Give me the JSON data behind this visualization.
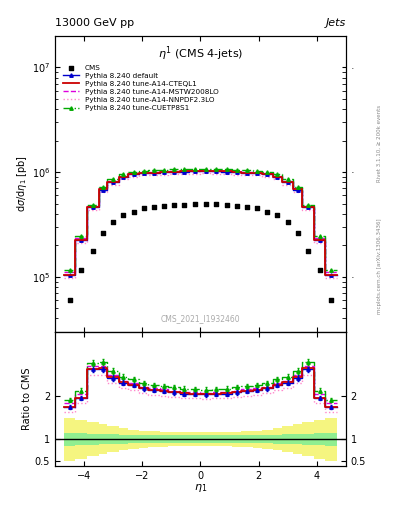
{
  "title_main": "13000 GeV pp",
  "title_right": "Jets",
  "plot_title": "$\\eta^1$ (CMS 4-jets)",
  "xlabel": "$\\eta_1$",
  "ylabel_main": "d$\\sigma$/d$\\eta_1$ [pb]",
  "ylabel_ratio": "Ratio to CMS",
  "watermark": "CMS_2021_I1932460",
  "rivet_text": "Rivet 3.1.10, ≥ 200k events",
  "mcplots_text": "mcplots.cern.ch [arXiv:1306.3436]",
  "eta_bins": [
    -4.7,
    -4.3,
    -3.9,
    -3.5,
    -3.2,
    -2.8,
    -2.5,
    -2.1,
    -1.8,
    -1.4,
    -1.1,
    -0.7,
    -0.4,
    0.0,
    0.4,
    0.7,
    1.1,
    1.4,
    1.8,
    2.1,
    2.5,
    2.8,
    3.2,
    3.5,
    3.9,
    4.3,
    4.7
  ],
  "cms_data_y": [
    60000.0,
    115000.0,
    175000.0,
    260000.0,
    330000.0,
    390000.0,
    420000.0,
    450000.0,
    460000.0,
    470000.0,
    480000.0,
    490000.0,
    495000.0,
    500000.0,
    495000.0,
    480000.0,
    470000.0,
    460000.0,
    450000.0,
    420000.0,
    390000.0,
    330000.0,
    260000.0,
    175000.0,
    115000.0,
    60000.0
  ],
  "pythia_default_y": [
    105000.0,
    225000.0,
    460000.0,
    680000.0,
    800000.0,
    900000.0,
    950000.0,
    980000.0,
    985000.0,
    995000.0,
    1005000.0,
    1010000.0,
    1015000.0,
    1020000.0,
    1015000.0,
    1010000.0,
    995000.0,
    985000.0,
    980000.0,
    950000.0,
    900000.0,
    800000.0,
    680000.0,
    460000.0,
    225000.0,
    105000.0
  ],
  "pythia_cteq_y": [
    105000.0,
    225000.0,
    460000.0,
    685000.0,
    805000.0,
    905000.0,
    955000.0,
    985000.0,
    990000.0,
    1000000.0,
    1010000.0,
    1015000.0,
    1020000.0,
    1025000.0,
    1020000.0,
    1015000.0,
    1000000.0,
    990000.0,
    985000.0,
    955000.0,
    905000.0,
    805000.0,
    685000.0,
    460000.0,
    225000.0,
    105000.0
  ],
  "pythia_mstw_y": [
    110000.0,
    235000.0,
    470000.0,
    700000.0,
    820000.0,
    920000.0,
    970000.0,
    1000000.0,
    1005000.0,
    1015000.0,
    1025000.0,
    1030000.0,
    1035000.0,
    1040000.0,
    1035000.0,
    1030000.0,
    1015000.0,
    1005000.0,
    1000000.0,
    970000.0,
    920000.0,
    820000.0,
    700000.0,
    470000.0,
    235000.0,
    110000.0
  ],
  "pythia_nnpdf_y": [
    98000.0,
    210000.0,
    435000.0,
    650000.0,
    760000.0,
    850000.0,
    900000.0,
    930000.0,
    935000.0,
    945000.0,
    955000.0,
    960000.0,
    965000.0,
    970000.0,
    965000.0,
    960000.0,
    945000.0,
    935000.0,
    930000.0,
    900000.0,
    850000.0,
    760000.0,
    650000.0,
    435000.0,
    210000.0,
    98000.0
  ],
  "pythia_cuetp_y": [
    115000.0,
    245000.0,
    485000.0,
    725000.0,
    850000.0,
    955000.0,
    1005000.0,
    1035000.0,
    1040000.0,
    1050000.0,
    1060000.0,
    1065000.0,
    1070000.0,
    1075000.0,
    1070000.0,
    1065000.0,
    1050000.0,
    1040000.0,
    1035000.0,
    1005000.0,
    955000.0,
    850000.0,
    725000.0,
    485000.0,
    245000.0,
    115000.0
  ],
  "color_default": "#0000cc",
  "color_cteq": "#cc0000",
  "color_mstw": "#dd00dd",
  "color_nnpdf": "#ff88cc",
  "color_cuetp": "#00aa00",
  "color_cms": "#000000",
  "ylim_main": [
    30000.0,
    20000000.0
  ],
  "ylim_ratio": [
    0.38,
    3.5
  ],
  "xlim": [
    -5.0,
    5.0
  ],
  "ratio_default": [
    1.75,
    1.96,
    2.63,
    2.62,
    2.42,
    2.31,
    2.26,
    2.18,
    2.14,
    2.12,
    2.09,
    2.06,
    2.05,
    2.04,
    2.05,
    2.06,
    2.09,
    2.12,
    2.14,
    2.18,
    2.26,
    2.31,
    2.42,
    2.62,
    1.96,
    1.75
  ],
  "ratio_cteq": [
    1.75,
    1.96,
    2.63,
    2.65,
    2.44,
    2.32,
    2.27,
    2.19,
    2.15,
    2.13,
    2.1,
    2.07,
    2.06,
    2.05,
    2.06,
    2.07,
    2.1,
    2.13,
    2.15,
    2.19,
    2.27,
    2.32,
    2.44,
    2.65,
    1.96,
    1.75
  ],
  "ratio_mstw": [
    1.83,
    2.04,
    2.69,
    2.69,
    2.48,
    2.36,
    2.31,
    2.22,
    2.18,
    2.16,
    2.13,
    2.1,
    2.09,
    2.08,
    2.09,
    2.1,
    2.13,
    2.16,
    2.18,
    2.22,
    2.31,
    2.36,
    2.48,
    2.69,
    2.04,
    1.83
  ],
  "ratio_nnpdf": [
    1.63,
    1.83,
    2.49,
    2.5,
    2.3,
    2.18,
    2.14,
    2.07,
    2.03,
    2.01,
    1.99,
    1.96,
    1.95,
    1.94,
    1.95,
    1.96,
    1.99,
    2.01,
    2.03,
    2.07,
    2.14,
    2.18,
    2.3,
    2.5,
    1.83,
    1.63
  ],
  "ratio_cuetp": [
    1.92,
    2.13,
    2.77,
    2.79,
    2.58,
    2.45,
    2.39,
    2.3,
    2.26,
    2.23,
    2.21,
    2.17,
    2.16,
    2.15,
    2.16,
    2.17,
    2.21,
    2.23,
    2.26,
    2.3,
    2.39,
    2.45,
    2.58,
    2.79,
    2.13,
    1.92
  ],
  "yellow_top": [
    1.5,
    1.45,
    1.4,
    1.35,
    1.3,
    1.25,
    1.22,
    1.2,
    1.18,
    1.17,
    1.16,
    1.16,
    1.16,
    1.16,
    1.16,
    1.16,
    1.17,
    1.18,
    1.2,
    1.22,
    1.25,
    1.3,
    1.35,
    1.4,
    1.45,
    1.5
  ],
  "yellow_bot": [
    0.5,
    0.55,
    0.6,
    0.65,
    0.7,
    0.75,
    0.78,
    0.8,
    0.82,
    0.83,
    0.84,
    0.84,
    0.84,
    0.84,
    0.84,
    0.84,
    0.83,
    0.82,
    0.8,
    0.78,
    0.75,
    0.7,
    0.65,
    0.6,
    0.55,
    0.5
  ],
  "green_top": [
    1.15,
    1.14,
    1.13,
    1.12,
    1.11,
    1.1,
    1.09,
    1.09,
    1.09,
    1.09,
    1.09,
    1.09,
    1.09,
    1.09,
    1.09,
    1.09,
    1.09,
    1.09,
    1.09,
    1.09,
    1.1,
    1.11,
    1.12,
    1.13,
    1.14,
    1.15
  ],
  "green_bot": [
    0.85,
    0.86,
    0.87,
    0.88,
    0.89,
    0.9,
    0.91,
    0.91,
    0.91,
    0.91,
    0.91,
    0.91,
    0.91,
    0.91,
    0.91,
    0.91,
    0.91,
    0.91,
    0.91,
    0.91,
    0.9,
    0.89,
    0.88,
    0.87,
    0.86,
    0.85
  ]
}
